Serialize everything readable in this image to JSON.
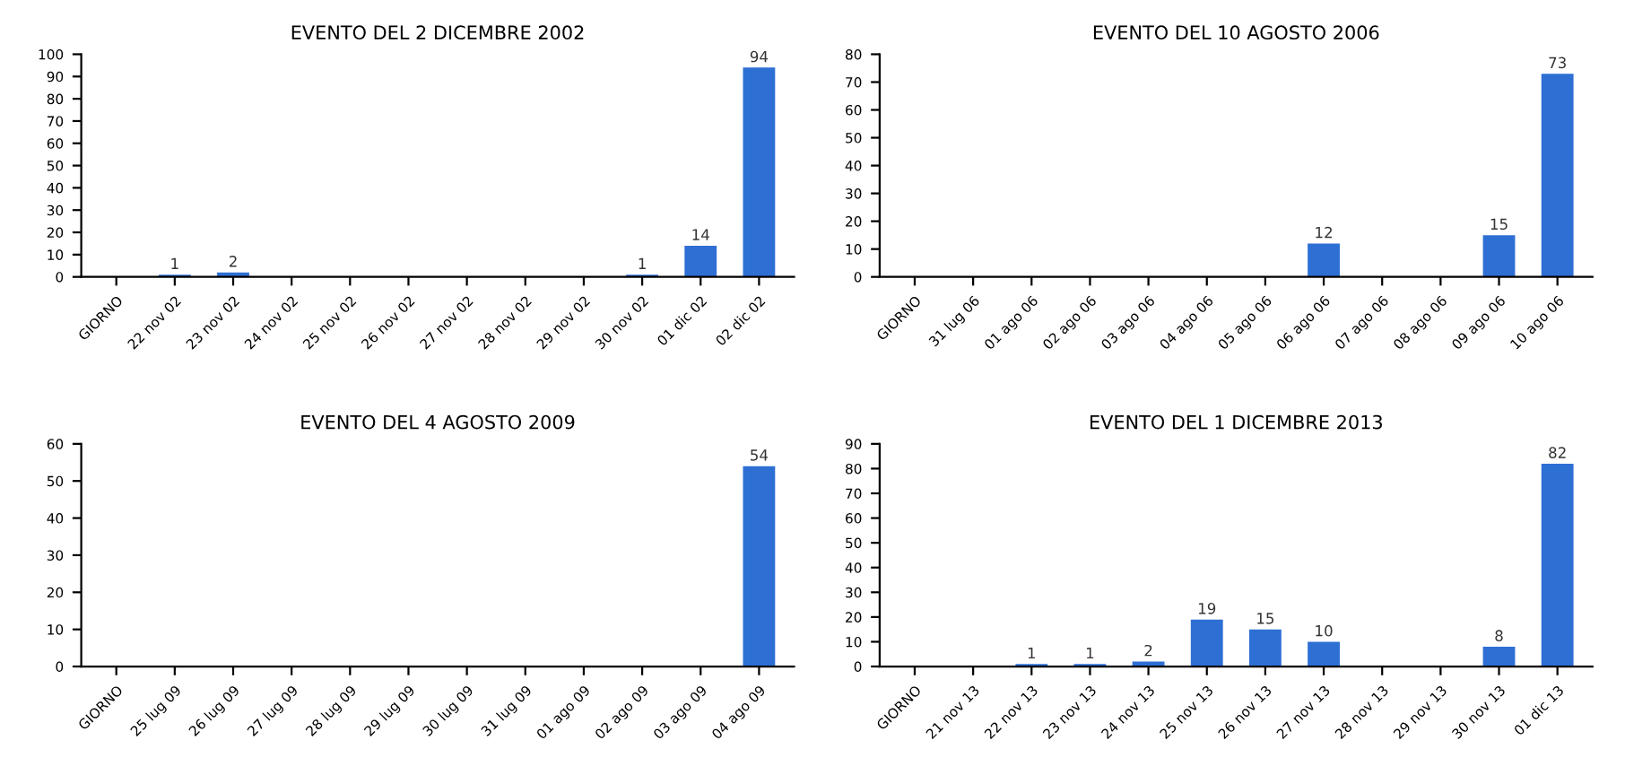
{
  "chart_data": [
    {
      "type": "bar",
      "title": "EVENTO DEL 2 DICEMBRE 2002",
      "categories": [
        "GIORNO",
        "22 nov 02",
        "23 nov 02",
        "24 nov 02",
        "25 nov 02",
        "26 nov 02",
        "27 nov 02",
        "28 nov 02",
        "29 nov 02",
        "30 nov 02",
        "01 dic 02",
        "02 dic 02"
      ],
      "values": [
        null,
        1,
        2,
        0,
        0,
        0,
        0,
        0,
        0,
        1,
        14,
        94
      ],
      "value_labels": [
        null,
        "1",
        "2",
        null,
        null,
        null,
        null,
        null,
        null,
        "1",
        "14",
        "94"
      ],
      "color": "#2e6fd4",
      "ylim": [
        0,
        100
      ],
      "yticks": [
        0,
        10,
        20,
        30,
        40,
        50,
        60,
        70,
        80,
        90,
        100
      ],
      "grid": false,
      "legend": false
    },
    {
      "type": "bar",
      "title": "EVENTO DEL 10 AGOSTO 2006",
      "categories": [
        "GIORNO",
        "31 lug 06",
        "01 ago 06",
        "02 ago 06",
        "03 ago 06",
        "04 ago 06",
        "05 ago 06",
        "06 ago 06",
        "07 ago 06",
        "08 ago 06",
        "09 ago 06",
        "10 ago 06"
      ],
      "values": [
        null,
        0,
        0,
        0,
        0,
        0,
        0,
        12,
        0,
        0,
        15,
        73
      ],
      "value_labels": [
        null,
        null,
        null,
        null,
        null,
        null,
        null,
        "12",
        null,
        null,
        "15",
        "73"
      ],
      "color": "#2e6fd4",
      "ylim": [
        0,
        80
      ],
      "yticks": [
        0,
        10,
        20,
        30,
        40,
        50,
        60,
        70,
        80
      ],
      "grid": false,
      "legend": false
    },
    {
      "type": "bar",
      "title": "EVENTO DEL 4 AGOSTO 2009",
      "categories": [
        "GIORNO",
        "25 lug 09",
        "26 lug 09",
        "27 lug 09",
        "28 lug 09",
        "29 lug 09",
        "30 lug 09",
        "31 lug 09",
        "01 ago 09",
        "02 ago 09",
        "03 ago 09",
        "04 ago 09"
      ],
      "values": [
        null,
        0,
        0,
        0,
        0,
        0,
        0,
        0,
        0,
        0,
        0,
        54
      ],
      "value_labels": [
        null,
        null,
        null,
        null,
        null,
        null,
        null,
        null,
        null,
        null,
        null,
        "54"
      ],
      "color": "#2e6fd4",
      "ylim": [
        0,
        60
      ],
      "yticks": [
        0,
        10,
        20,
        30,
        40,
        50,
        60
      ],
      "grid": false,
      "legend": false
    },
    {
      "type": "bar",
      "title": "EVENTO DEL 1 DICEMBRE 2013",
      "categories": [
        "GIORNO",
        "21 nov 13",
        "22 nov 13",
        "23 nov 13",
        "24 nov 13",
        "25 nov 13",
        "26 nov 13",
        "27 nov 13",
        "28 nov 13",
        "29 nov 13",
        "30 nov 13",
        "01 dic 13"
      ],
      "values": [
        null,
        0,
        1,
        1,
        2,
        19,
        15,
        10,
        0,
        0,
        8,
        82
      ],
      "value_labels": [
        null,
        null,
        "1",
        "1",
        "2",
        "19",
        "15",
        "10",
        null,
        null,
        "8",
        "82"
      ],
      "color": "#2e6fd4",
      "ylim": [
        0,
        90
      ],
      "yticks": [
        0,
        10,
        20,
        30,
        40,
        50,
        60,
        70,
        80,
        90
      ],
      "grid": false,
      "legend": false
    }
  ]
}
